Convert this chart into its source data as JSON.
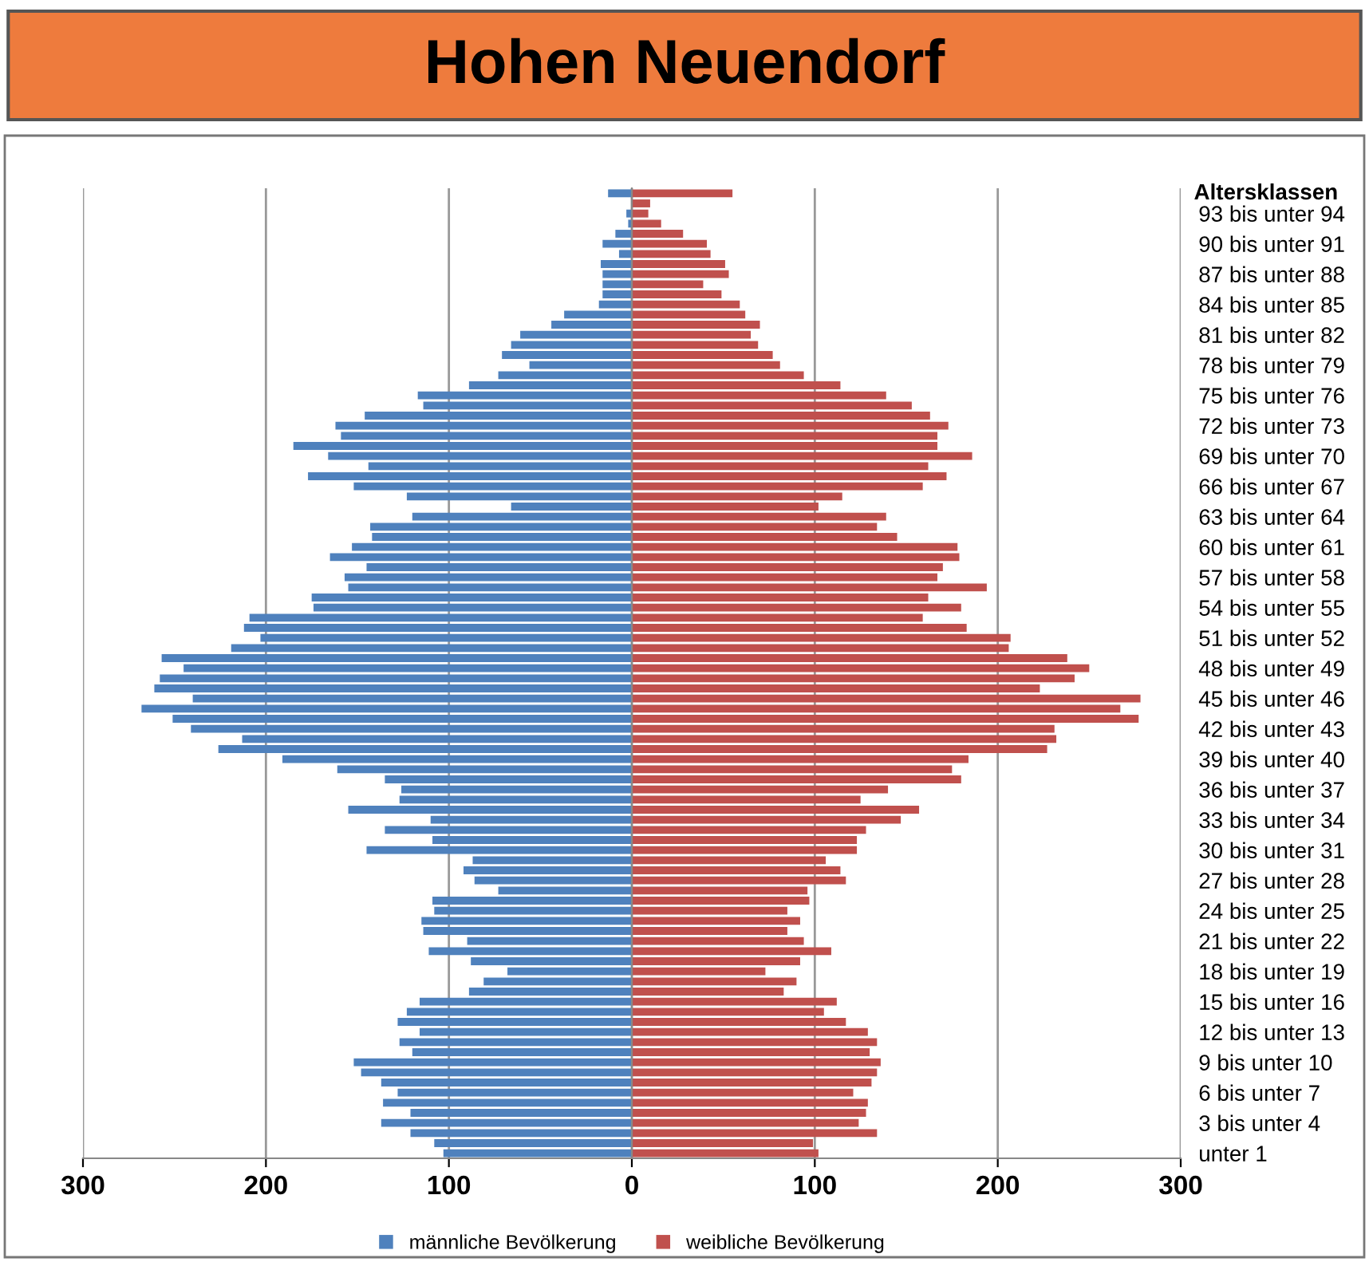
{
  "chart_data": {
    "type": "bar",
    "orientation": "horizontal",
    "title": "Hohen Neuendorf",
    "ylabel": "Altersklassen",
    "categories": [
      null,
      null,
      "93 bis unter 94",
      null,
      null,
      "90 bis unter 91",
      null,
      null,
      "87 bis unter 88",
      null,
      null,
      "84 bis unter 85",
      null,
      null,
      "81 bis unter 82",
      null,
      null,
      "78 bis unter 79",
      null,
      null,
      "75 bis unter 76",
      null,
      null,
      "72 bis unter 73",
      null,
      null,
      "69 bis unter 70",
      null,
      null,
      "66 bis unter 67",
      null,
      null,
      "63 bis unter 64",
      null,
      null,
      "60 bis unter 61",
      null,
      null,
      "57 bis unter 58",
      null,
      null,
      "54 bis unter 55",
      null,
      null,
      "51 bis unter 52",
      null,
      null,
      "48 bis unter 49",
      null,
      null,
      "45 bis unter 46",
      null,
      null,
      "42 bis unter 43",
      null,
      null,
      "39 bis unter 40",
      null,
      null,
      "36 bis unter 37",
      null,
      null,
      "33 bis unter 34",
      null,
      null,
      "30 bis unter 31",
      null,
      null,
      "27 bis unter 28",
      null,
      null,
      "24 bis unter 25",
      null,
      null,
      "21 bis unter 22",
      null,
      null,
      "18 bis unter 19",
      null,
      null,
      "15 bis unter 16",
      null,
      null,
      "12 bis unter 13",
      null,
      null,
      "9 bis unter 10",
      null,
      null,
      "6 bis unter 7",
      null,
      null,
      "3 bis unter 4",
      null,
      null,
      "unter 1"
    ],
    "series": [
      {
        "name": "männliche Bevölkerung",
        "color": "#4f81bd",
        "values": [
          -13,
          null,
          -3,
          -2,
          -9,
          -16,
          -7,
          -17,
          -16,
          -16,
          -16,
          -18,
          -37,
          -44,
          -61,
          -66,
          -71,
          -56,
          -73,
          -89,
          -117,
          -114,
          -146,
          -162,
          -159,
          -185,
          -166,
          -144,
          -177,
          -152,
          -123,
          -66,
          -120,
          -143,
          -142,
          -153,
          -165,
          -145,
          -157,
          -155,
          -175,
          -174,
          -209,
          -212,
          -203,
          -219,
          -257,
          -245,
          -258,
          -261,
          -240,
          -268,
          -251,
          -241,
          -213,
          -226,
          -191,
          -161,
          -135,
          -126,
          -127,
          -155,
          -110,
          -135,
          -109,
          -145,
          -87,
          -92,
          -86,
          -73,
          -109,
          -108,
          -115,
          -114,
          -90,
          -111,
          -88,
          -68,
          -81,
          -89,
          -116,
          -123,
          -128,
          -116,
          -127,
          -120,
          -152,
          -148,
          -137,
          -128,
          -136,
          -121,
          -137,
          -121,
          -108,
          -103
        ]
      },
      {
        "name": "weibliche Bevölkerung",
        "color": "#c0504d",
        "values": [
          55,
          10,
          9,
          16,
          28,
          41,
          43,
          51,
          53,
          39,
          49,
          59,
          62,
          70,
          65,
          69,
          77,
          81,
          94,
          114,
          139,
          153,
          163,
          173,
          167,
          167,
          186,
          162,
          172,
          159,
          115,
          102,
          139,
          134,
          145,
          178,
          179,
          170,
          167,
          194,
          162,
          180,
          159,
          183,
          207,
          206,
          238,
          250,
          242,
          223,
          278,
          267,
          277,
          231,
          232,
          227,
          184,
          175,
          180,
          140,
          125,
          157,
          147,
          128,
          123,
          123,
          106,
          114,
          117,
          96,
          97,
          85,
          92,
          85,
          94,
          109,
          92,
          73,
          90,
          83,
          112,
          105,
          117,
          129,
          134,
          130,
          136,
          134,
          131,
          121,
          129,
          128,
          124,
          134,
          99,
          102
        ]
      }
    ],
    "xlim": [
      -300,
      300
    ],
    "xticks": [
      {
        "value": -300,
        "label": "300"
      },
      {
        "value": -200,
        "label": "200"
      },
      {
        "value": -100,
        "label": "100"
      },
      0,
      100,
      200,
      300
    ],
    "grid": "x",
    "legend": "bottom",
    "stacked": true
  }
}
